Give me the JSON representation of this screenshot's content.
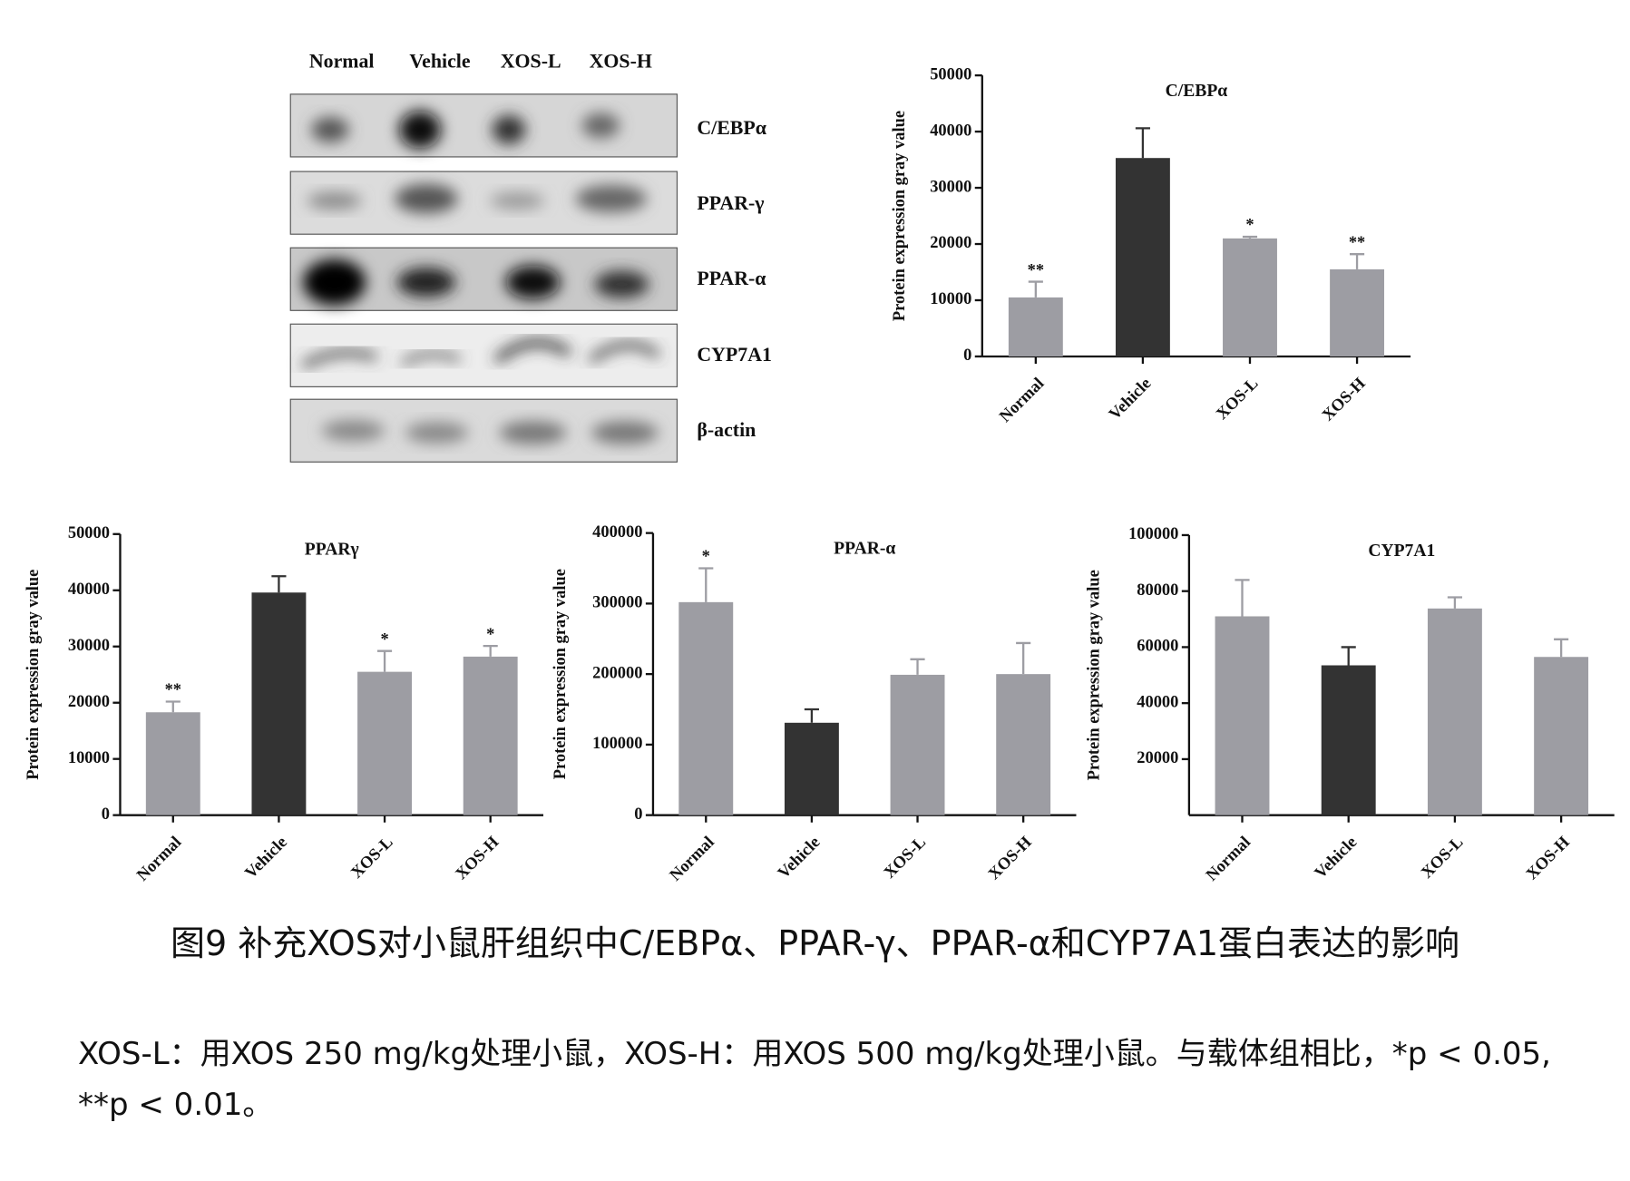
{
  "blot": {
    "lanes": [
      "Normal",
      "Vehicle",
      "XOS-L",
      "XOS-H"
    ],
    "proteins": [
      "C/EBPα",
      "PPAR-γ",
      "PPAR-α",
      "CYP7A1",
      "β-actin"
    ]
  },
  "chart_data": [
    {
      "type": "bar",
      "title": "C/EBPα",
      "ylabel": "Protein expression gray value",
      "categories": [
        "Normal",
        "Vehicle",
        "XOS-L",
        "XOS-H"
      ],
      "values": [
        10500,
        35300,
        21000,
        15500
      ],
      "errors": [
        2800,
        5300,
        300,
        2700
      ],
      "annotations": [
        "**",
        null,
        "*",
        "**"
      ],
      "colors": [
        "#9d9da3",
        "#333333",
        "#9d9da3",
        "#9d9da3"
      ],
      "ylim": [
        0,
        50000
      ],
      "yticks": [
        0,
        10000,
        20000,
        30000,
        40000,
        50000
      ]
    },
    {
      "type": "bar",
      "title": "PPARγ",
      "ylabel": "Protein expression gray value",
      "categories": [
        "Normal",
        "Vehicle",
        "XOS-L",
        "XOS-H"
      ],
      "values": [
        18300,
        39600,
        25500,
        28200
      ],
      "errors": [
        1900,
        2900,
        3700,
        1900
      ],
      "annotations": [
        "**",
        null,
        "*",
        "*"
      ],
      "colors": [
        "#9d9da3",
        "#333333",
        "#9d9da3",
        "#9d9da3"
      ],
      "ylim": [
        0,
        50000
      ],
      "yticks": [
        0,
        10000,
        20000,
        30000,
        40000,
        50000
      ]
    },
    {
      "type": "bar",
      "title": "PPAR-α",
      "ylabel": "Protein expression gray value",
      "categories": [
        "Normal",
        "Vehicle",
        "XOS-L",
        "XOS-H"
      ],
      "values": [
        302000,
        131000,
        199000,
        200000
      ],
      "errors": [
        48000,
        19000,
        22000,
        44000
      ],
      "annotations": [
        "*",
        null,
        null,
        null
      ],
      "colors": [
        "#9d9da3",
        "#333333",
        "#9d9da3",
        "#9d9da3"
      ],
      "ylim": [
        0,
        400000
      ],
      "yticks": [
        0,
        100000,
        200000,
        300000,
        400000
      ]
    },
    {
      "type": "bar",
      "title": "CYP7A1",
      "ylabel": "Protein expression gray value",
      "categories": [
        "Normal",
        "Vehicle",
        "XOS-L",
        "XOS-H"
      ],
      "values": [
        71000,
        53500,
        73800,
        56500
      ],
      "errors": [
        13000,
        6500,
        4000,
        6300
      ],
      "annotations": [
        null,
        null,
        null,
        null
      ],
      "colors": [
        "#9d9da3",
        "#333333",
        "#9d9da3",
        "#9d9da3"
      ],
      "ylim": [
        0,
        100000
      ],
      "yticks": [
        20000,
        40000,
        60000,
        80000,
        100000
      ]
    }
  ],
  "caption": {
    "title": "图9 补充XOS对小鼠肝组织中C/EBPα、PPAR-γ、PPAR-α和CYP7A1蛋白表达的影响",
    "note": "XOS-L：用XOS 250 mg/kg处理小鼠，XOS-H：用XOS 500 mg/kg处理小鼠。与载体组相比，*p < 0.05, **p < 0.01。"
  }
}
